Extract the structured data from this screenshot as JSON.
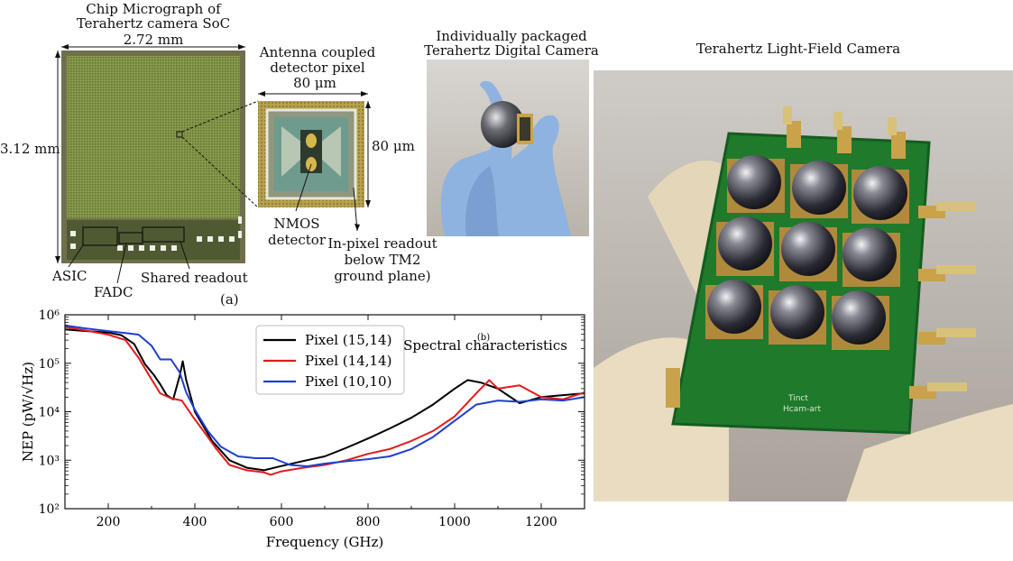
{
  "panel_a": {
    "title_line1": "Chip Micrograph of",
    "title_line2": "Terahertz camera SoC",
    "width_dim": "2.72 mm",
    "height_dim": "3.12 mm",
    "label_asic": "ASIC",
    "label_fadc": "FADC",
    "label_shared": "Shared readout",
    "inset_title_line1": "Antenna coupled",
    "inset_title_line2": "detector pixel",
    "inset_width_dim": "80 μm",
    "inset_height_dim": "80 μm",
    "label_nmos_line1": "NMOS",
    "label_nmos_line2": "detector",
    "label_inpixel_line1": "In-pixel readout",
    "label_inpixel_line2": "below TM2",
    "label_inpixel_line3": "ground plane)",
    "panel_letter": "(a)"
  },
  "photo_packaged": {
    "title_line1": "Individually packaged",
    "title_line2": "Terahertz Digital Camera"
  },
  "photo_lightfield": {
    "title": "Terahertz Light-Field Camera",
    "board_text_line1": "Tinct",
    "board_text_line2": "Hcam-art"
  },
  "colors": {
    "chip_green": "#7a8f3e",
    "pcb_green": "#1f7a2c",
    "glove_blue": "#8fb3e0",
    "glove_cream": "#e9dcc0",
    "gold": "#c9a24a"
  },
  "chart_data": {
    "type": "line",
    "title": "Spectral characteristics",
    "panel_label": "(b)",
    "xlabel": "Frequency (GHz)",
    "ylabel": "NEP (pW/√Hz)",
    "xlim": [
      100,
      1300
    ],
    "ylim": [
      100,
      1000000
    ],
    "yscale": "log",
    "xticks": [
      200,
      400,
      600,
      800,
      1000,
      1200
    ],
    "ytick_labels": [
      "10²",
      "10³",
      "10⁴",
      "10⁵",
      "10⁶"
    ],
    "yticks": [
      100,
      1000,
      10000,
      100000,
      1000000
    ],
    "legend_position": "upper-center",
    "series": [
      {
        "name": "Pixel (15,14)",
        "color": "#000000",
        "x": [
          100,
          150,
          200,
          230,
          260,
          285,
          305,
          320,
          335,
          350,
          365,
          372,
          380,
          400,
          440,
          480,
          520,
          560,
          600,
          650,
          700,
          750,
          800,
          850,
          900,
          950,
          1000,
          1030,
          1060,
          1100,
          1150,
          1200,
          1250,
          1300
        ],
        "y": [
          500000,
          460000,
          430000,
          380000,
          250000,
          95000,
          58000,
          37000,
          22000,
          18000,
          55000,
          110000,
          45000,
          10000,
          2500,
          1000,
          700,
          620,
          760,
          960,
          1200,
          1800,
          2800,
          4500,
          7500,
          14000,
          30000,
          45000,
          40000,
          30000,
          15000,
          20000,
          22000,
          24000
        ]
      },
      {
        "name": "Pixel (14,14)",
        "color": "#e41a1c",
        "x": [
          100,
          150,
          200,
          240,
          270,
          295,
          320,
          345,
          370,
          395,
          420,
          450,
          480,
          520,
          560,
          575,
          600,
          650,
          700,
          750,
          800,
          850,
          900,
          950,
          1000,
          1050,
          1080,
          1100,
          1150,
          1200,
          1250,
          1300
        ],
        "y": [
          560000,
          470000,
          390000,
          300000,
          130000,
          55000,
          24000,
          19000,
          17000,
          8000,
          4000,
          1700,
          800,
          620,
          560,
          500,
          590,
          700,
          800,
          1000,
          1350,
          1700,
          2500,
          4000,
          8000,
          24000,
          45000,
          30000,
          35000,
          20000,
          18000,
          25000
        ]
      },
      {
        "name": "Pixel (10,10)",
        "color": "#1f3fd1",
        "x": [
          100,
          150,
          200,
          240,
          270,
          300,
          320,
          345,
          365,
          380,
          400,
          430,
          460,
          500,
          540,
          580,
          620,
          660,
          700,
          750,
          800,
          850,
          900,
          950,
          1000,
          1050,
          1100,
          1150,
          1200,
          1250,
          1300
        ],
        "y": [
          600000,
          520000,
          460000,
          420000,
          390000,
          230000,
          120000,
          120000,
          65000,
          25000,
          11000,
          4000,
          1900,
          1200,
          1100,
          1100,
          800,
          750,
          850,
          950,
          1050,
          1200,
          1700,
          3000,
          6500,
          14000,
          17000,
          16000,
          18000,
          17000,
          20000
        ]
      }
    ]
  }
}
